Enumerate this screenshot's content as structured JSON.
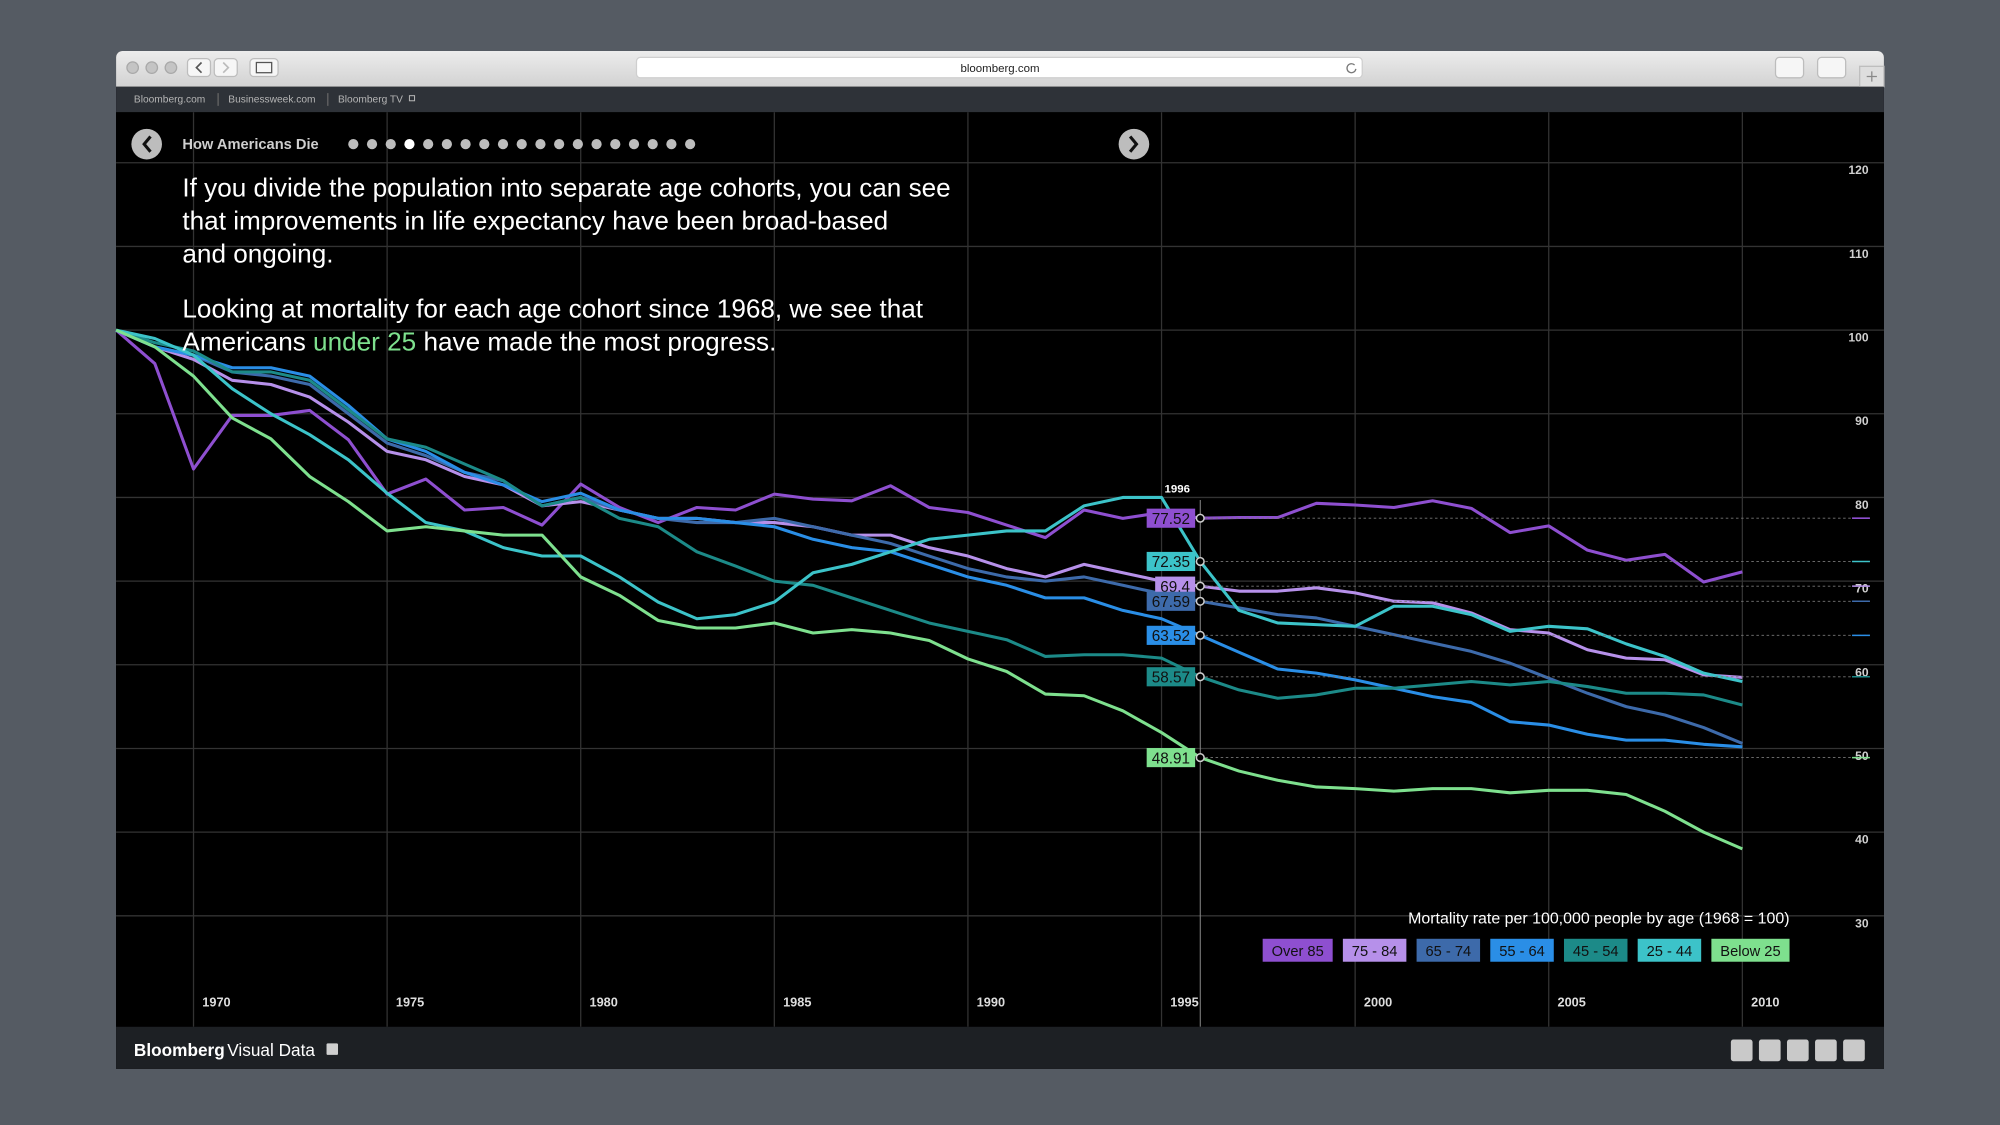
{
  "browser": {
    "url": "bloomberg.com",
    "bookmarks": [
      "Bloomberg.com",
      "Businessweek.com",
      "Bloomberg TV"
    ]
  },
  "nav": {
    "title": "How Americans Die"
  },
  "intro": {
    "paragraph_1": [
      "If you divide the population into separate age cohorts, you can see",
      "that improvements in life expectancy have been broad-based",
      "and ongoing."
    ],
    "paragraph_2_line_1": "Looking at mortality for each age cohort since 1968, we see that",
    "paragraph_2_line_2": [
      "Americans ",
      "under 25",
      " have made the most progress."
    ]
  },
  "footer": {
    "brand": "Bloomberg",
    "product": "Visual Data"
  },
  "chart_data": {
    "type": "line",
    "legend_title": "Mortality rate per 100,000 people by age (1968 = 100)",
    "cursor": 1996,
    "x": [
      1968,
      1969,
      1970,
      1971,
      1972,
      1973,
      1974,
      1975,
      1976,
      1977,
      1978,
      1979,
      1980,
      1981,
      1982,
      1983,
      1984,
      1985,
      1986,
      1987,
      1988,
      1989,
      1990,
      1991,
      1992,
      1993,
      1994,
      1995,
      1996,
      1997,
      1998,
      1999,
      2000,
      2001,
      2002,
      2003,
      2004,
      2005,
      2006,
      2007,
      2008,
      2009,
      2010
    ],
    "xlim": [
      1968,
      2010
    ],
    "xticks": [
      1970,
      1975,
      1980,
      1985,
      1990,
      1995,
      2000,
      2005,
      2010
    ],
    "ylim": [
      30,
      120
    ],
    "yticks": [
      30,
      40,
      50,
      60,
      70,
      80,
      90,
      100,
      110,
      120
    ],
    "grid": true,
    "series": [
      {
        "name": "Over 85",
        "color": "#8e4fd0",
        "values": [
          100,
          96,
          83.4,
          89.8,
          89.8,
          90.4,
          86.9,
          80.4,
          82.2,
          78.5,
          78.8,
          76.7,
          81.6,
          78.8,
          77,
          78.8,
          78.5,
          80.4,
          79.8,
          79.6,
          81.4,
          78.8,
          78.2,
          76.7,
          75.2,
          78.5,
          77.5,
          78.2,
          77.52,
          77.6,
          77.6,
          79.3,
          79.1,
          78.8,
          79.6,
          78.7,
          75.8,
          76.6,
          73.7,
          72.5,
          73.2,
          69.9,
          71.1
        ]
      },
      {
        "name": "75 - 84",
        "color": "#b690ea",
        "values": [
          100,
          98,
          96.5,
          94,
          93.5,
          92,
          89,
          85.5,
          84.5,
          82.5,
          81.5,
          79,
          79.5,
          78.5,
          77.5,
          77.5,
          77,
          77,
          76.5,
          75.5,
          75.5,
          74,
          73,
          71.5,
          70.5,
          72,
          71,
          70,
          69.4,
          68.8,
          68.8,
          69.2,
          68.6,
          67.6,
          67.4,
          66.2,
          64.2,
          63.8,
          61.8,
          60.8,
          60.6,
          58.8,
          58.5
        ]
      },
      {
        "name": "65 - 74",
        "color": "#3d6aaa",
        "values": [
          100,
          98,
          97,
          95,
          94.5,
          93.5,
          90,
          86.5,
          85,
          83,
          82,
          79,
          80,
          78.5,
          77.5,
          77,
          77,
          77.5,
          76.5,
          75.5,
          74.5,
          73,
          71.5,
          70.5,
          70,
          70.5,
          69.5,
          68.5,
          67.59,
          66.8,
          66,
          65.6,
          64.6,
          63.6,
          62.6,
          61.6,
          60.2,
          58.4,
          56.6,
          55,
          54,
          52.5,
          50.6
        ]
      },
      {
        "name": "55 - 64",
        "color": "#2a8ee6",
        "values": [
          100,
          98,
          97,
          95.5,
          95.5,
          94.5,
          91,
          87,
          85.5,
          83,
          81.5,
          79.5,
          80.5,
          78.5,
          77.5,
          77.5,
          77,
          76.5,
          75,
          74,
          73.5,
          72,
          70.5,
          69.5,
          68,
          68,
          66.5,
          65.5,
          63.52,
          61.5,
          59.5,
          59,
          58.2,
          57.2,
          56.2,
          55.5,
          53.2,
          52.8,
          51.7,
          51,
          51,
          50.5,
          50.2
        ]
      },
      {
        "name": "45 - 54",
        "color": "#1c8a88",
        "values": [
          100,
          98.5,
          97.5,
          95,
          95,
          94,
          90.5,
          87,
          86,
          84,
          82,
          79,
          80,
          77.5,
          76.5,
          73.5,
          71.8,
          70,
          69.5,
          68,
          66.5,
          65,
          64,
          63,
          61,
          61.2,
          61.2,
          60.8,
          58.57,
          57,
          56,
          56.4,
          57.2,
          57.2,
          57.6,
          58,
          57.6,
          58,
          57.4,
          56.6,
          56.6,
          56.4,
          55.2
        ]
      },
      {
        "name": "25 - 44",
        "color": "#3cc3c9",
        "values": [
          100,
          99,
          97,
          93,
          90,
          87.5,
          84.5,
          80.5,
          77,
          76,
          74,
          73,
          73,
          70.5,
          67.5,
          65.5,
          66,
          67.5,
          71,
          72,
          73.5,
          75,
          75.5,
          76,
          76,
          79,
          80,
          80,
          72.35,
          66.5,
          65,
          64.8,
          64.6,
          67,
          67,
          66,
          64,
          64.6,
          64.3,
          62.5,
          61,
          59,
          58
        ]
      },
      {
        "name": "Below 25",
        "color": "#7ee08e",
        "values": [
          100,
          98,
          94.5,
          89.5,
          87,
          82.5,
          79.5,
          76,
          76.5,
          76,
          75.5,
          75.5,
          70.5,
          68.3,
          65.3,
          64.4,
          64.4,
          65,
          63.8,
          64.2,
          63.8,
          62.9,
          60.7,
          59.2,
          56.5,
          56.3,
          54.5,
          51.9,
          48.91,
          47.3,
          46.2,
          45.4,
          45.2,
          44.9,
          45.2,
          45.2,
          44.7,
          45,
          45,
          44.5,
          42.5,
          40,
          38
        ]
      }
    ]
  }
}
